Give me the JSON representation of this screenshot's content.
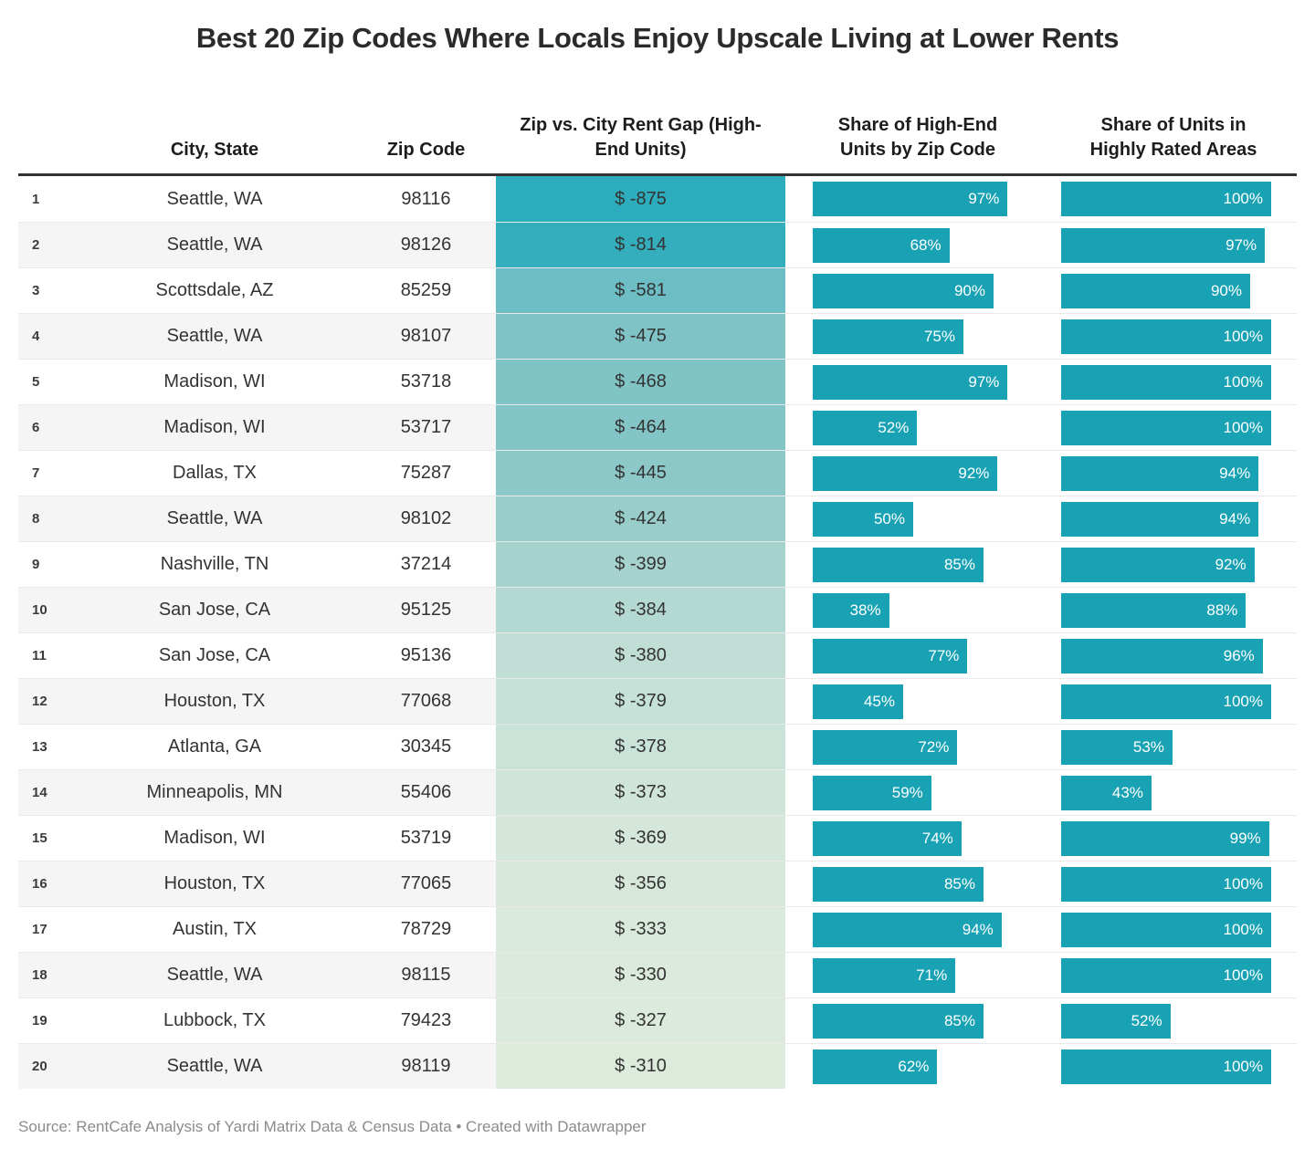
{
  "title": "Best 20 Zip Codes Where Locals Enjoy Upscale Living at Lower Rents",
  "source_line": "Source: RentCafe Analysis of Yardi Matrix Data & Census Data • Created with Datawrapper",
  "colors": {
    "bar": "#18a2b4",
    "header_rule": "#333333",
    "row_stripe": "#f5f5f5",
    "row_border": "#e9e9e9",
    "bar_label": "#ffffff",
    "title_text": "#2b2b2b",
    "body_text": "#333333",
    "source_text": "#8b8b8b",
    "gap_scale_start": "#2cacbc",
    "gap_scale_end": "#ddebdd"
  },
  "chart_data": {
    "type": "table",
    "title": "Best 20 Zip Codes Where Locals Enjoy Upscale Living at Lower Rents",
    "columns": [
      "",
      "City, State",
      "Zip Code",
      "Zip vs. City Rent Gap (High-End Units)",
      "Share of High-End Units by Zip Code",
      "Share of Units in Highly Rated Areas"
    ],
    "bar_columns_max_percent": 100,
    "rows": [
      {
        "rank": 1,
        "city": "Seattle, WA",
        "zip": "98116",
        "gap_label": "$ -875",
        "gap_value": -875,
        "gap_color": "#2cacbc",
        "high_end_pct": 97,
        "rated_pct": 100
      },
      {
        "rank": 2,
        "city": "Seattle, WA",
        "zip": "98126",
        "gap_label": "$ -814",
        "gap_value": -814,
        "gap_color": "#34adbc",
        "high_end_pct": 68,
        "rated_pct": 97
      },
      {
        "rank": 3,
        "city": "Scottsdale, AZ",
        "zip": "85259",
        "gap_label": "$ -581",
        "gap_value": -581,
        "gap_color": "#6dbdc5",
        "high_end_pct": 90,
        "rated_pct": 90
      },
      {
        "rank": 4,
        "city": "Seattle, WA",
        "zip": "98107",
        "gap_label": "$ -475",
        "gap_value": -475,
        "gap_color": "#7fc3c6",
        "high_end_pct": 75,
        "rated_pct": 100
      },
      {
        "rank": 5,
        "city": "Madison, WI",
        "zip": "53718",
        "gap_label": "$ -468",
        "gap_value": -468,
        "gap_color": "#81c4c6",
        "high_end_pct": 97,
        "rated_pct": 100
      },
      {
        "rank": 6,
        "city": "Madison, WI",
        "zip": "53717",
        "gap_label": "$ -464",
        "gap_value": -464,
        "gap_color": "#83c5c7",
        "high_end_pct": 52,
        "rated_pct": 100
      },
      {
        "rank": 7,
        "city": "Dallas, TX",
        "zip": "75287",
        "gap_label": "$ -445",
        "gap_value": -445,
        "gap_color": "#8cc8c8",
        "high_end_pct": 92,
        "rated_pct": 94
      },
      {
        "rank": 8,
        "city": "Seattle, WA",
        "zip": "98102",
        "gap_label": "$ -424",
        "gap_value": -424,
        "gap_color": "#98cdca",
        "high_end_pct": 50,
        "rated_pct": 94
      },
      {
        "rank": 9,
        "city": "Nashville, TN",
        "zip": "37214",
        "gap_label": "$ -399",
        "gap_value": -399,
        "gap_color": "#a7d3ce",
        "high_end_pct": 85,
        "rated_pct": 92
      },
      {
        "rank": 10,
        "city": "San Jose, CA",
        "zip": "95125",
        "gap_label": "$ -384",
        "gap_value": -384,
        "gap_color": "#b4d9d2",
        "high_end_pct": 38,
        "rated_pct": 88
      },
      {
        "rank": 11,
        "city": "San Jose, CA",
        "zip": "95136",
        "gap_label": "$ -380",
        "gap_value": -380,
        "gap_color": "#c0ded5",
        "high_end_pct": 77,
        "rated_pct": 96
      },
      {
        "rank": 12,
        "city": "Houston, TX",
        "zip": "77068",
        "gap_label": "$ -379",
        "gap_value": -379,
        "gap_color": "#c6e1d7",
        "high_end_pct": 45,
        "rated_pct": 100
      },
      {
        "rank": 13,
        "city": "Atlanta, GA",
        "zip": "30345",
        "gap_label": "$ -378",
        "gap_value": -378,
        "gap_color": "#cae3d8",
        "high_end_pct": 72,
        "rated_pct": 53
      },
      {
        "rank": 14,
        "city": "Minneapolis, MN",
        "zip": "55406",
        "gap_label": "$ -373",
        "gap_value": -373,
        "gap_color": "#d0e5d9",
        "high_end_pct": 59,
        "rated_pct": 43
      },
      {
        "rank": 15,
        "city": "Madison, WI",
        "zip": "53719",
        "gap_label": "$ -369",
        "gap_value": -369,
        "gap_color": "#d4e7da",
        "high_end_pct": 74,
        "rated_pct": 99
      },
      {
        "rank": 16,
        "city": "Houston, TX",
        "zip": "77065",
        "gap_label": "$ -356",
        "gap_value": -356,
        "gap_color": "#d7e8db",
        "high_end_pct": 85,
        "rated_pct": 100
      },
      {
        "rank": 17,
        "city": "Austin, TX",
        "zip": "78729",
        "gap_label": "$ -333",
        "gap_value": -333,
        "gap_color": "#d9e9dc",
        "high_end_pct": 94,
        "rated_pct": 100
      },
      {
        "rank": 18,
        "city": "Seattle, WA",
        "zip": "98115",
        "gap_label": "$ -330",
        "gap_value": -330,
        "gap_color": "#dbeadc",
        "high_end_pct": 71,
        "rated_pct": 100
      },
      {
        "rank": 19,
        "city": "Lubbock, TX",
        "zip": "79423",
        "gap_label": "$ -327",
        "gap_value": -327,
        "gap_color": "#dceadd",
        "high_end_pct": 85,
        "rated_pct": 52
      },
      {
        "rank": 20,
        "city": "Seattle, WA",
        "zip": "98119",
        "gap_label": "$ -310",
        "gap_value": -310,
        "gap_color": "#ddebdd",
        "high_end_pct": 62,
        "rated_pct": 100
      }
    ]
  }
}
